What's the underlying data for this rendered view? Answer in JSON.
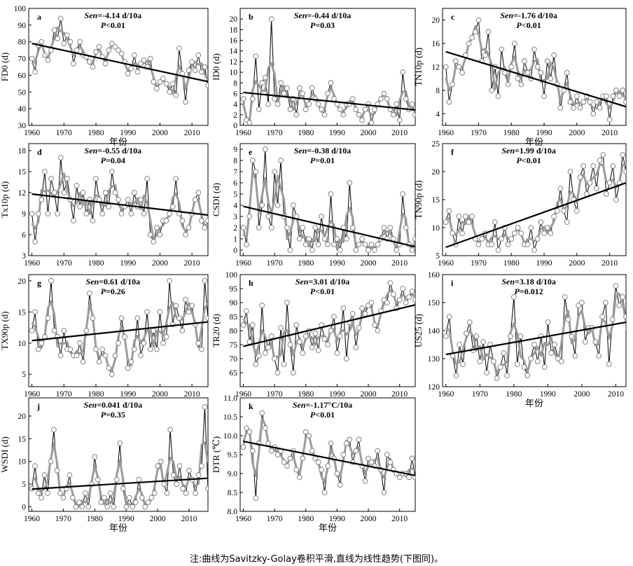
{
  "chart_data": [
    {
      "type": "line",
      "panel_label": "a",
      "sen_prefix": "Sen",
      "sen_value": "=-4.14 d/10a",
      "p_prefix": "P",
      "p_value": "<0.01",
      "ylabel": "FD0 (d)",
      "xlabel": "年份",
      "xlim": [
        1959,
        2015
      ],
      "ylim": [
        30,
        100
      ],
      "yticks": [
        30,
        40,
        50,
        60,
        70,
        80,
        90,
        100
      ],
      "xticks": [
        1960,
        1970,
        1980,
        1990,
        2000,
        2010
      ],
      "x_start": 1960,
      "values": [
        70,
        62,
        78,
        80,
        72,
        69,
        75,
        87,
        82,
        94,
        79,
        84,
        80,
        67,
        75,
        80,
        72,
        71,
        68,
        65,
        74,
        77,
        71,
        67,
        75,
        79,
        77,
        75,
        73,
        68,
        61,
        64,
        72,
        62,
        67,
        69,
        65,
        70,
        56,
        52,
        56,
        58,
        55,
        50,
        55,
        48,
        76,
        61,
        44,
        63,
        68,
        63,
        72,
        62,
        65,
        54
      ],
      "trend": [
        79.0,
        56.2
      ]
    },
    {
      "type": "line",
      "panel_label": "b",
      "sen_prefix": "Sen",
      "sen_value": "=-0.44 d/10a",
      "p_prefix": "P",
      "p_value": "=0.03",
      "ylabel": "ID0 (d)",
      "xlabel": "",
      "xlim": [
        1959,
        2015
      ],
      "ylim": [
        0,
        22
      ],
      "yticks": [
        0,
        2,
        4,
        6,
        8,
        10,
        12,
        14,
        16,
        18,
        20
      ],
      "xticks": [
        1960,
        1970,
        1980,
        1990,
        2000,
        2010
      ],
      "x_start": 1960,
      "values": [
        5,
        1,
        0.5,
        5,
        13,
        3,
        8,
        9,
        4,
        20,
        5,
        4,
        8,
        6,
        7,
        3,
        5,
        2,
        7,
        6,
        3,
        4,
        7,
        5,
        4,
        3,
        2,
        6,
        8,
        5,
        4,
        3,
        2,
        4,
        4,
        5,
        3,
        2,
        1,
        3,
        4,
        0.5,
        3,
        4,
        5,
        6,
        5,
        3,
        2,
        4,
        1,
        10,
        5,
        3,
        4,
        2
      ],
      "trend": [
        6.2,
        2.9
      ]
    },
    {
      "type": "line",
      "panel_label": "c",
      "sen_prefix": "Sen",
      "sen_value": "=-1.76 d/10a",
      "p_prefix": "P",
      "p_value": "<0.01",
      "ylabel": "TN10p (d)",
      "xlabel": "年份",
      "xlim": [
        1959,
        2015
      ],
      "ylim": [
        2,
        22
      ],
      "yticks": [
        4,
        8,
        12,
        16,
        20
      ],
      "xticks": [
        1960,
        1970,
        1980,
        1990,
        2000,
        2010
      ],
      "x_start": 1960,
      "values": [
        12,
        6,
        9,
        13,
        12,
        11,
        14,
        16,
        17,
        18,
        20,
        13,
        14,
        18,
        8,
        12,
        7,
        15,
        11,
        9,
        12,
        16,
        10,
        9,
        13,
        11,
        10,
        15,
        12,
        11,
        7,
        13,
        10,
        14,
        9,
        5,
        8,
        11,
        6,
        5,
        7,
        5,
        6,
        7,
        6,
        4,
        6,
        5,
        7,
        7,
        3,
        7,
        8,
        7,
        8,
        6
      ],
      "trend": [
        14.6,
        5.2
      ]
    },
    {
      "type": "line",
      "panel_label": "d",
      "sen_prefix": "Sen",
      "sen_value": "=-0.55 d/10a",
      "p_prefix": "P",
      "p_value": "=0.04",
      "ylabel": "Tx10p (d)",
      "xlabel": "",
      "xlim": [
        1959,
        2015
      ],
      "ylim": [
        3,
        19
      ],
      "yticks": [
        3,
        6,
        9,
        12,
        15,
        18
      ],
      "xticks": [
        1960,
        1970,
        1980,
        1990,
        2000,
        2010
      ],
      "x_start": 1960,
      "values": [
        9,
        5,
        9,
        11,
        15,
        9,
        14,
        12,
        9,
        17,
        12,
        14,
        11,
        8,
        13,
        10,
        12,
        9,
        11,
        8,
        14,
        11,
        9,
        12,
        10,
        15,
        12,
        11,
        9,
        10,
        11,
        9,
        12,
        10,
        11,
        9,
        14,
        6,
        5,
        7,
        6,
        8,
        8,
        9,
        10,
        14,
        9,
        8,
        6,
        7,
        9,
        11,
        12,
        8,
        7,
        8
      ],
      "trend": [
        11.8,
        8.8
      ]
    },
    {
      "type": "line",
      "panel_label": "e",
      "sen_prefix": "Sen",
      "sen_value": "=-0.38 d/10a",
      "p_prefix": "P",
      "p_value": "=0.01",
      "ylabel": "CSDI (d)",
      "xlabel": "",
      "xlim": [
        1959,
        2015
      ],
      "ylim": [
        -0.5,
        9.5
      ],
      "yticks": [
        0,
        1,
        2,
        3,
        4,
        5,
        6,
        7,
        8,
        9
      ],
      "xticks": [
        1960,
        1970,
        1980,
        1990,
        2000,
        2010
      ],
      "x_start": 1960,
      "values": [
        2,
        0.5,
        3,
        8,
        7,
        2,
        4,
        9,
        3,
        2,
        7,
        4,
        8,
        3,
        2,
        0,
        4,
        3,
        1,
        2,
        0.5,
        1,
        0,
        2,
        0.5,
        3,
        1,
        0.5,
        5,
        0.5,
        1,
        0,
        2,
        1,
        6,
        2,
        0,
        0.5,
        1,
        0.5,
        0,
        0.5,
        0,
        0.5,
        1,
        2,
        1,
        2,
        1,
        0,
        0.5,
        5,
        2,
        0.5,
        0,
        1
      ],
      "trend": [
        3.9,
        0.3
      ]
    },
    {
      "type": "line",
      "panel_label": "f",
      "sen_prefix": "Sen",
      "sen_value": "=1.99 d/10a",
      "p_prefix": "P",
      "p_value": "<0.01",
      "ylabel": "TN90p (d)",
      "xlabel": "",
      "xlim": [
        1959,
        2015
      ],
      "ylim": [
        5,
        25
      ],
      "yticks": [
        5,
        10,
        15,
        20,
        25
      ],
      "xticks": [
        1960,
        1970,
        1980,
        1990,
        2000,
        2010
      ],
      "x_start": 1960,
      "values": [
        11,
        13,
        9,
        7,
        12,
        9,
        12,
        11,
        12,
        8,
        7,
        8,
        9,
        7,
        7,
        11,
        6,
        8,
        10,
        7,
        8,
        9,
        10,
        9,
        7,
        7,
        10,
        6,
        8,
        11,
        9,
        10,
        9,
        12,
        13,
        17,
        13,
        11,
        20,
        15,
        13,
        19,
        21,
        16,
        18,
        21,
        17,
        22,
        23,
        16,
        18,
        21,
        15,
        18,
        23,
        20
      ],
      "trend": [
        6.5,
        18.0
      ]
    },
    {
      "type": "line",
      "panel_label": "g",
      "sen_prefix": "Sen",
      "sen_value": "=0.61 d/10a",
      "p_prefix": "P",
      "p_value": "=0.26",
      "ylabel": "TX90p (d)",
      "xlabel": "",
      "xlim": [
        1959,
        2015
      ],
      "ylim": [
        3,
        21
      ],
      "yticks": [
        5,
        10,
        15,
        20
      ],
      "xticks": [
        1960,
        1970,
        1980,
        1990,
        2000,
        2010
      ],
      "x_start": 1960,
      "values": [
        12,
        15,
        9,
        10,
        11,
        14,
        20,
        12,
        11,
        8,
        12,
        9,
        9,
        8,
        8,
        10,
        7,
        12,
        18,
        14,
        9,
        7,
        9,
        8,
        6,
        5,
        8,
        10,
        14,
        11,
        6,
        7,
        9,
        14,
        8,
        10,
        15,
        9,
        12,
        9,
        15,
        10,
        11,
        20,
        13,
        16,
        14,
        12,
        17,
        15,
        16,
        13,
        10,
        9,
        20,
        14
      ],
      "trend": [
        10.4,
        13.4
      ]
    },
    {
      "type": "line",
      "panel_label": "h",
      "sen_prefix": "Sen",
      "sen_value": "=3.01 d/10a",
      "p_prefix": "P",
      "p_value": "<0.01",
      "ylabel": "TR20 (d)",
      "xlabel": "",
      "xlim": [
        1959,
        2015
      ],
      "ylim": [
        60,
        100
      ],
      "yticks": [
        65,
        70,
        75,
        80,
        85,
        90,
        95,
        100
      ],
      "xticks": [
        1960,
        1970,
        1980,
        1990,
        2000,
        2010
      ],
      "x_start": 1960,
      "values": [
        82,
        87,
        76,
        82,
        68,
        71,
        89,
        72,
        74,
        78,
        70,
        65,
        81,
        68,
        90,
        75,
        65,
        82,
        76,
        72,
        78,
        80,
        74,
        79,
        73,
        82,
        77,
        75,
        80,
        85,
        72,
        78,
        88,
        70,
        83,
        86,
        74,
        81,
        88,
        86,
        89,
        90,
        82,
        80,
        87,
        91,
        90,
        97,
        93,
        88,
        91,
        95,
        90,
        92,
        94,
        91
      ],
      "trend": [
        74.4,
        89.2
      ]
    },
    {
      "type": "line",
      "panel_label": "i",
      "sen_prefix": "Sen",
      "sen_value": "=3.18 d/10a",
      "p_prefix": "P",
      "p_value": "=0.012",
      "ylabel": "US25 (d)",
      "xlabel": "年份",
      "xlim": [
        1959,
        2013
      ],
      "ylim": [
        120,
        160
      ],
      "yticks": [
        120,
        130,
        140,
        150,
        160
      ],
      "xticks": [
        1960,
        1970,
        1980,
        1990,
        2000,
        2010
      ],
      "x_start": 1960,
      "values": [
        138,
        145,
        131,
        124,
        135,
        128,
        139,
        143,
        133,
        138,
        129,
        136,
        125,
        135,
        129,
        123,
        127,
        132,
        124,
        138,
        152,
        128,
        138,
        127,
        124,
        130,
        135,
        129,
        138,
        127,
        143,
        132,
        135,
        130,
        129,
        152,
        144,
        138,
        131,
        149,
        150,
        136,
        141,
        141,
        136,
        131,
        145,
        150,
        128,
        144,
        156,
        149,
        152,
        145,
        129
      ],
      "trend": [
        131.5,
        143.2
      ]
    },
    {
      "type": "line",
      "panel_label": "j",
      "sen_prefix": "Sen",
      "sen_value": "=0.041 d/10a",
      "p_prefix": "P",
      "p_value": "=0.35",
      "ylabel": "WSDI (d)",
      "xlabel": "年份",
      "xlim": [
        1959,
        2016
      ],
      "ylim": [
        -1,
        24
      ],
      "yticks": [
        0,
        5,
        10,
        15,
        20
      ],
      "xticks": [
        1960,
        1970,
        1980,
        1990,
        2000,
        2010
      ],
      "x_start": 1960,
      "values": [
        4,
        9,
        3,
        2,
        7,
        3,
        10,
        17,
        8,
        3,
        2,
        4,
        7,
        2,
        0,
        1,
        0,
        3,
        0,
        5,
        11,
        6,
        1,
        2,
        0,
        3,
        0,
        6,
        14,
        4,
        0,
        2,
        0,
        1,
        6,
        2,
        0,
        1,
        2,
        3,
        9,
        10,
        5,
        3,
        17,
        7,
        5,
        9,
        4,
        3,
        8,
        6,
        3,
        7,
        9,
        22,
        4
      ],
      "trend": [
        3.9,
        6.3
      ]
    },
    {
      "type": "line",
      "panel_label": "k",
      "sen_prefix": "Sen",
      "sen_value": "=-1.17°C/10a",
      "p_prefix": "P",
      "p_value": "<0.01",
      "ylabel": "DTR (℃)",
      "xlabel": "年份",
      "xlim": [
        1959,
        2015
      ],
      "ylim": [
        8,
        11
      ],
      "yticks": [
        8.0,
        8.5,
        9.0,
        9.5,
        10.0,
        10.5,
        11.0
      ],
      "xticks": [
        1960,
        1970,
        1980,
        1990,
        2000,
        2010
      ],
      "x_start": 1960,
      "values": [
        9.7,
        10.2,
        10.1,
        9.6,
        8.35,
        9.8,
        10.6,
        10.2,
        9.8,
        9.6,
        9.7,
        9.5,
        9.6,
        9.3,
        9.2,
        9.4,
        9.6,
        9.1,
        8.9,
        9.4,
        10.1,
        10.0,
        9.6,
        9.4,
        9.3,
        9.1,
        8.5,
        9.2,
        9.8,
        9.4,
        9.0,
        8.7,
        9.5,
        9.8,
        9.9,
        9.3,
        9.6,
        9.9,
        9.2,
        8.8,
        9.4,
        9.3,
        9.2,
        9.6,
        9.1,
        8.5,
        9.5,
        9.3,
        9.1,
        9.0,
        8.9,
        9.0,
        9.0,
        8.9,
        9.4,
        8.9
      ],
      "trend": [
        9.85,
        8.95
      ]
    }
  ],
  "note": "注:曲线为Savitzky-Golay卷积平滑,直线为线性趋势(下图同)。"
}
